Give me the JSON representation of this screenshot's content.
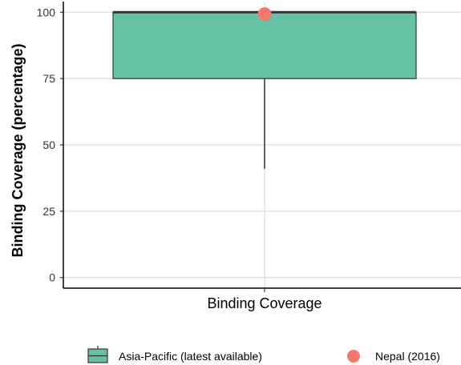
{
  "chart_data": {
    "type": "box",
    "xlabel": "Binding Coverage",
    "ylabel": "Binding Coverage (percentage)",
    "ylim": [
      -4,
      104
    ],
    "yticks": [
      0,
      25,
      50,
      75,
      100
    ],
    "grid": true,
    "box": {
      "name": "Asia-Pacific  (latest available)",
      "min": 41,
      "q1": 75,
      "median": 100,
      "q3": 100,
      "max": 100,
      "color": "#66C2A5"
    },
    "point": {
      "name": "Nepal (2016)",
      "value": 99.3,
      "color": "#F8766D"
    },
    "legend_position": "bottom"
  }
}
